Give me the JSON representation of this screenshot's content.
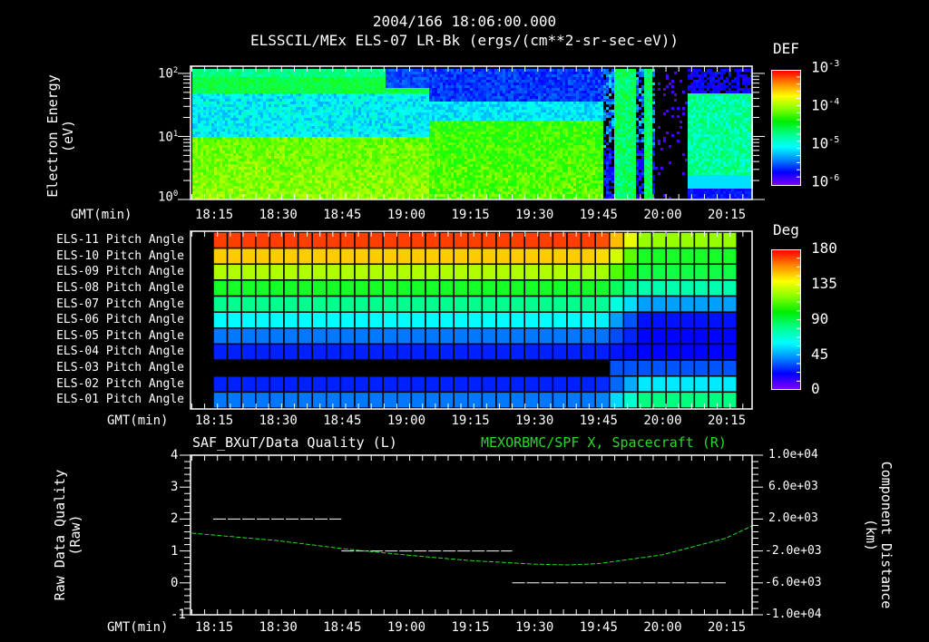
{
  "header": {
    "timestamp": "2004/166 18:06:00.000",
    "title": "ELSSCIL/MEx ELS-07 LR-Bk  (ergs/(cm**2-sr-sec-eV))"
  },
  "time_axis": {
    "label": "GMT(min)",
    "ticks": [
      "18:15",
      "18:30",
      "18:45",
      "19:00",
      "19:15",
      "19:30",
      "19:45",
      "20:00",
      "20:15"
    ]
  },
  "panel1": {
    "ylabel_line1": "Electron Energy",
    "ylabel_line2": "(eV)",
    "yticks": [
      {
        "base": "10",
        "exp": "2"
      },
      {
        "base": "10",
        "exp": "1"
      },
      {
        "base": "10",
        "exp": "0"
      }
    ],
    "colorbar": {
      "title": "DEF",
      "ticks": [
        {
          "base": "10",
          "exp": "-3"
        },
        {
          "base": "10",
          "exp": "-4"
        },
        {
          "base": "10",
          "exp": "-5"
        },
        {
          "base": "10",
          "exp": "-6"
        }
      ]
    }
  },
  "panel2": {
    "rows": [
      "ELS-11 Pitch Angle",
      "ELS-10 Pitch Angle",
      "ELS-09 Pitch Angle",
      "ELS-08 Pitch Angle",
      "ELS-07 Pitch Angle",
      "ELS-06 Pitch Angle",
      "ELS-05 Pitch Angle",
      "ELS-04 Pitch Angle",
      "ELS-03 Pitch Angle",
      "ELS-02 Pitch Angle",
      "ELS-01 Pitch Angle"
    ],
    "colorbar": {
      "title": "Deg",
      "ticks": [
        "180",
        "135",
        "90",
        "45",
        "0"
      ]
    }
  },
  "panel3": {
    "left_title": "SAF_BXuT/Data Quality (L)",
    "right_title": "MEXORBMC/SPF X, Spacecraft (R)",
    "right_title_color": "#22dd22",
    "ylabel_left_line1": "Raw Data Quality",
    "ylabel_left_line2": "(Raw)",
    "ylabel_right_line1": "Component Distance",
    "ylabel_right_line2": "(km)",
    "yticks_left": [
      "4",
      "3",
      "2",
      "1",
      "0",
      "-1"
    ],
    "yticks_right": [
      "1.0e+04",
      "6.0e+03",
      "2.0e+03",
      "-2.0e+03",
      "-6.0e+03",
      "-1.0e+04"
    ]
  },
  "chart_data": [
    {
      "type": "heatmap",
      "title": "ELSSCIL/MEx ELS-07 LR-Bk (ergs/(cm**2-sr-sec-eV))",
      "subtitle": "2004/166 18:06:00.000",
      "xlabel": "GMT(min)",
      "ylabel": "Electron Energy (eV)",
      "yscale": "log",
      "ylim": [
        1,
        130
      ],
      "x_ticks": [
        "18:15",
        "18:30",
        "18:45",
        "19:00",
        "19:15",
        "19:30",
        "19:45",
        "20:00",
        "20:15"
      ],
      "colorbar": {
        "label": "DEF",
        "scale": "log",
        "range": [
          1e-06,
          0.001
        ]
      },
      "description": "Green/yellow-green (~1e-4) below ~8 eV throughout until ~19:45; cyan-blue band 10-50 eV before ~19:05 then green-cyan; purple/blue above ~60 eV after 19:00; sharp dropout after 19:45 with narrow green spikes near 19:52 and 19:57; near-empty 19:58-20:06; cyan/green recovery 20:06-20:21"
    },
    {
      "type": "heatmap",
      "title": "ELS Pitch Angles",
      "xlabel": "GMT(min)",
      "categories": [
        "ELS-11",
        "ELS-10",
        "ELS-09",
        "ELS-08",
        "ELS-07",
        "ELS-06",
        "ELS-05",
        "ELS-04",
        "ELS-03",
        "ELS-02",
        "ELS-01"
      ],
      "colorbar": {
        "label": "Deg",
        "range": [
          0,
          180
        ],
        "ticks": [
          0,
          45,
          90,
          135,
          180
        ]
      },
      "approx_values_before_1945": [
        172,
        152,
        128,
        105,
        88,
        68,
        45,
        28,
        null,
        28,
        45
      ],
      "approx_values_2000": [
        125,
        105,
        100,
        82,
        52,
        25,
        22,
        22,
        38,
        65,
        90
      ]
    },
    {
      "type": "line",
      "title": "SAF_BXuT/Data Quality (L) ; MEXORBMC/SPF X, Spacecraft (R)",
      "xlabel": "GMT(min)",
      "ylabel": "Raw Data Quality (Raw)",
      "ylabel_right": "Component Distance (km)",
      "ylim": [
        -1,
        4
      ],
      "ylim_right": [
        -10000,
        10000
      ],
      "series": [
        {
          "name": "Data Quality (L)",
          "color": "#ffffff",
          "x": [
            "18:15",
            "18:45",
            "18:45",
            "19:25",
            "19:25",
            "20:15"
          ],
          "values": [
            2,
            2,
            1,
            1,
            0,
            0
          ]
        },
        {
          "name": "SPF X, Spacecraft (R)",
          "color": "#22dd22",
          "x": [
            "18:10",
            "18:30",
            "18:45",
            "19:00",
            "19:15",
            "19:30",
            "19:38",
            "19:45",
            "20:00",
            "20:15",
            "20:21"
          ],
          "values": [
            230,
            -700,
            -1700,
            -2500,
            -3200,
            -3650,
            -3750,
            -3600,
            -2500,
            -400,
            1100
          ]
        }
      ]
    }
  ]
}
